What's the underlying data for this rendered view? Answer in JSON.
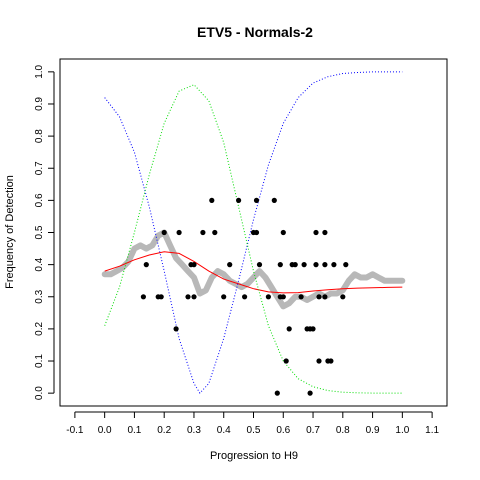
{
  "chart_data": {
    "type": "scatter",
    "title": "ETV5 - Normals-2",
    "xlabel": "Progression to H9",
    "ylabel": "Frequency of Detection",
    "xlim": [
      -0.15,
      1.15
    ],
    "ylim": [
      -0.04,
      1.04
    ],
    "x_ticks": [
      "-0.1",
      "0.0",
      "0.1",
      "0.2",
      "0.3",
      "0.4",
      "0.5",
      "0.6",
      "0.7",
      "0.8",
      "0.9",
      "1.0",
      "1.1"
    ],
    "x_tick_values": [
      -0.1,
      0.0,
      0.1,
      0.2,
      0.3,
      0.4,
      0.5,
      0.6,
      0.7,
      0.8,
      0.9,
      1.0,
      1.1
    ],
    "y_ticks": [
      "0.0",
      "0.1",
      "0.2",
      "0.3",
      "0.4",
      "0.5",
      "0.6",
      "0.7",
      "0.8",
      "0.9",
      "1.0"
    ],
    "y_tick_values": [
      0.0,
      0.1,
      0.2,
      0.3,
      0.4,
      0.5,
      0.6,
      0.7,
      0.8,
      0.9,
      1.0
    ],
    "grid": false,
    "colors": {
      "points": "#000000",
      "gray_curve": "#b8b8b8",
      "red_curve": "#ff0000",
      "blue_curve": "#0000ff",
      "green_curve": "#00dd00"
    },
    "points": [
      {
        "x": 0.13,
        "y": 0.3
      },
      {
        "x": 0.14,
        "y": 0.4
      },
      {
        "x": 0.18,
        "y": 0.3
      },
      {
        "x": 0.19,
        "y": 0.3
      },
      {
        "x": 0.2,
        "y": 0.5
      },
      {
        "x": 0.24,
        "y": 0.2
      },
      {
        "x": 0.25,
        "y": 0.5
      },
      {
        "x": 0.28,
        "y": 0.3
      },
      {
        "x": 0.29,
        "y": 0.4
      },
      {
        "x": 0.3,
        "y": 0.4
      },
      {
        "x": 0.3,
        "y": 0.3
      },
      {
        "x": 0.33,
        "y": 0.5
      },
      {
        "x": 0.36,
        "y": 0.6
      },
      {
        "x": 0.37,
        "y": 0.5
      },
      {
        "x": 0.4,
        "y": 0.3
      },
      {
        "x": 0.42,
        "y": 0.4
      },
      {
        "x": 0.45,
        "y": 0.6
      },
      {
        "x": 0.47,
        "y": 0.3
      },
      {
        "x": 0.5,
        "y": 0.5
      },
      {
        "x": 0.51,
        "y": 0.6
      },
      {
        "x": 0.51,
        "y": 0.5
      },
      {
        "x": 0.52,
        "y": 0.4
      },
      {
        "x": 0.55,
        "y": 0.3
      },
      {
        "x": 0.57,
        "y": 0.6
      },
      {
        "x": 0.58,
        "y": 0.0
      },
      {
        "x": 0.59,
        "y": 0.4
      },
      {
        "x": 0.59,
        "y": 0.3
      },
      {
        "x": 0.6,
        "y": 0.3
      },
      {
        "x": 0.6,
        "y": 0.5
      },
      {
        "x": 0.61,
        "y": 0.1
      },
      {
        "x": 0.62,
        "y": 0.2
      },
      {
        "x": 0.63,
        "y": 0.4
      },
      {
        "x": 0.64,
        "y": 0.4
      },
      {
        "x": 0.66,
        "y": 0.3
      },
      {
        "x": 0.67,
        "y": 0.4
      },
      {
        "x": 0.68,
        "y": 0.2
      },
      {
        "x": 0.69,
        "y": 0.2
      },
      {
        "x": 0.69,
        "y": 0.0
      },
      {
        "x": 0.7,
        "y": 0.2
      },
      {
        "x": 0.71,
        "y": 0.5
      },
      {
        "x": 0.71,
        "y": 0.4
      },
      {
        "x": 0.72,
        "y": 0.1
      },
      {
        "x": 0.72,
        "y": 0.3
      },
      {
        "x": 0.74,
        "y": 0.5
      },
      {
        "x": 0.74,
        "y": 0.3
      },
      {
        "x": 0.74,
        "y": 0.4
      },
      {
        "x": 0.75,
        "y": 0.1
      },
      {
        "x": 0.76,
        "y": 0.1
      },
      {
        "x": 0.77,
        "y": 0.4
      },
      {
        "x": 0.8,
        "y": 0.3
      },
      {
        "x": 0.81,
        "y": 0.4
      }
    ],
    "series": [
      {
        "style": "thick-gray",
        "x": [
          0.0,
          0.02,
          0.04,
          0.06,
          0.08,
          0.1,
          0.12,
          0.14,
          0.16,
          0.18,
          0.2,
          0.22,
          0.24,
          0.26,
          0.28,
          0.3,
          0.32,
          0.34,
          0.36,
          0.38,
          0.4,
          0.42,
          0.44,
          0.46,
          0.48,
          0.5,
          0.52,
          0.54,
          0.56,
          0.58,
          0.6,
          0.62,
          0.64,
          0.66,
          0.68,
          0.7,
          0.72,
          0.74,
          0.76,
          0.78,
          0.8,
          0.82,
          0.84,
          0.86,
          0.88,
          0.9,
          0.92,
          0.94,
          0.96,
          0.98,
          1.0
        ],
        "y": [
          0.37,
          0.37,
          0.38,
          0.39,
          0.41,
          0.45,
          0.46,
          0.45,
          0.46,
          0.49,
          0.5,
          0.46,
          0.42,
          0.4,
          0.38,
          0.36,
          0.31,
          0.32,
          0.36,
          0.38,
          0.37,
          0.35,
          0.34,
          0.33,
          0.34,
          0.36,
          0.38,
          0.36,
          0.33,
          0.3,
          0.27,
          0.28,
          0.3,
          0.3,
          0.29,
          0.3,
          0.31,
          0.3,
          0.31,
          0.31,
          0.32,
          0.35,
          0.37,
          0.36,
          0.36,
          0.37,
          0.36,
          0.35,
          0.35,
          0.35,
          0.35
        ]
      },
      {
        "style": "red",
        "x": [
          0.0,
          0.05,
          0.1,
          0.15,
          0.2,
          0.25,
          0.3,
          0.35,
          0.4,
          0.45,
          0.5,
          0.55,
          0.6,
          0.65,
          0.7,
          0.75,
          0.8,
          0.85,
          0.9,
          0.95,
          1.0
        ],
        "y": [
          0.38,
          0.395,
          0.415,
          0.43,
          0.44,
          0.435,
          0.41,
          0.38,
          0.355,
          0.34,
          0.325,
          0.315,
          0.312,
          0.313,
          0.318,
          0.322,
          0.325,
          0.327,
          0.328,
          0.329,
          0.33
        ]
      },
      {
        "style": "blue-dotted",
        "x": [
          0.0,
          0.05,
          0.1,
          0.15,
          0.2,
          0.25,
          0.3,
          0.32,
          0.35,
          0.4,
          0.45,
          0.5,
          0.55,
          0.6,
          0.65,
          0.7,
          0.75,
          0.8,
          0.85,
          0.9,
          0.95,
          1.0
        ],
        "y": [
          0.92,
          0.86,
          0.75,
          0.58,
          0.38,
          0.17,
          0.03,
          0.0,
          0.03,
          0.17,
          0.35,
          0.54,
          0.71,
          0.84,
          0.92,
          0.965,
          0.985,
          0.995,
          0.998,
          1.0,
          1.0,
          1.0
        ]
      },
      {
        "style": "green-dotted",
        "x": [
          0.0,
          0.05,
          0.1,
          0.15,
          0.2,
          0.25,
          0.3,
          0.35,
          0.4,
          0.45,
          0.5,
          0.55,
          0.6,
          0.65,
          0.7,
          0.75,
          0.8,
          0.85,
          0.9,
          0.95,
          1.0
        ],
        "y": [
          0.21,
          0.33,
          0.5,
          0.68,
          0.84,
          0.94,
          0.96,
          0.91,
          0.78,
          0.58,
          0.38,
          0.21,
          0.1,
          0.045,
          0.02,
          0.008,
          0.003,
          0.001,
          0.0,
          0.0,
          0.0
        ]
      }
    ]
  }
}
